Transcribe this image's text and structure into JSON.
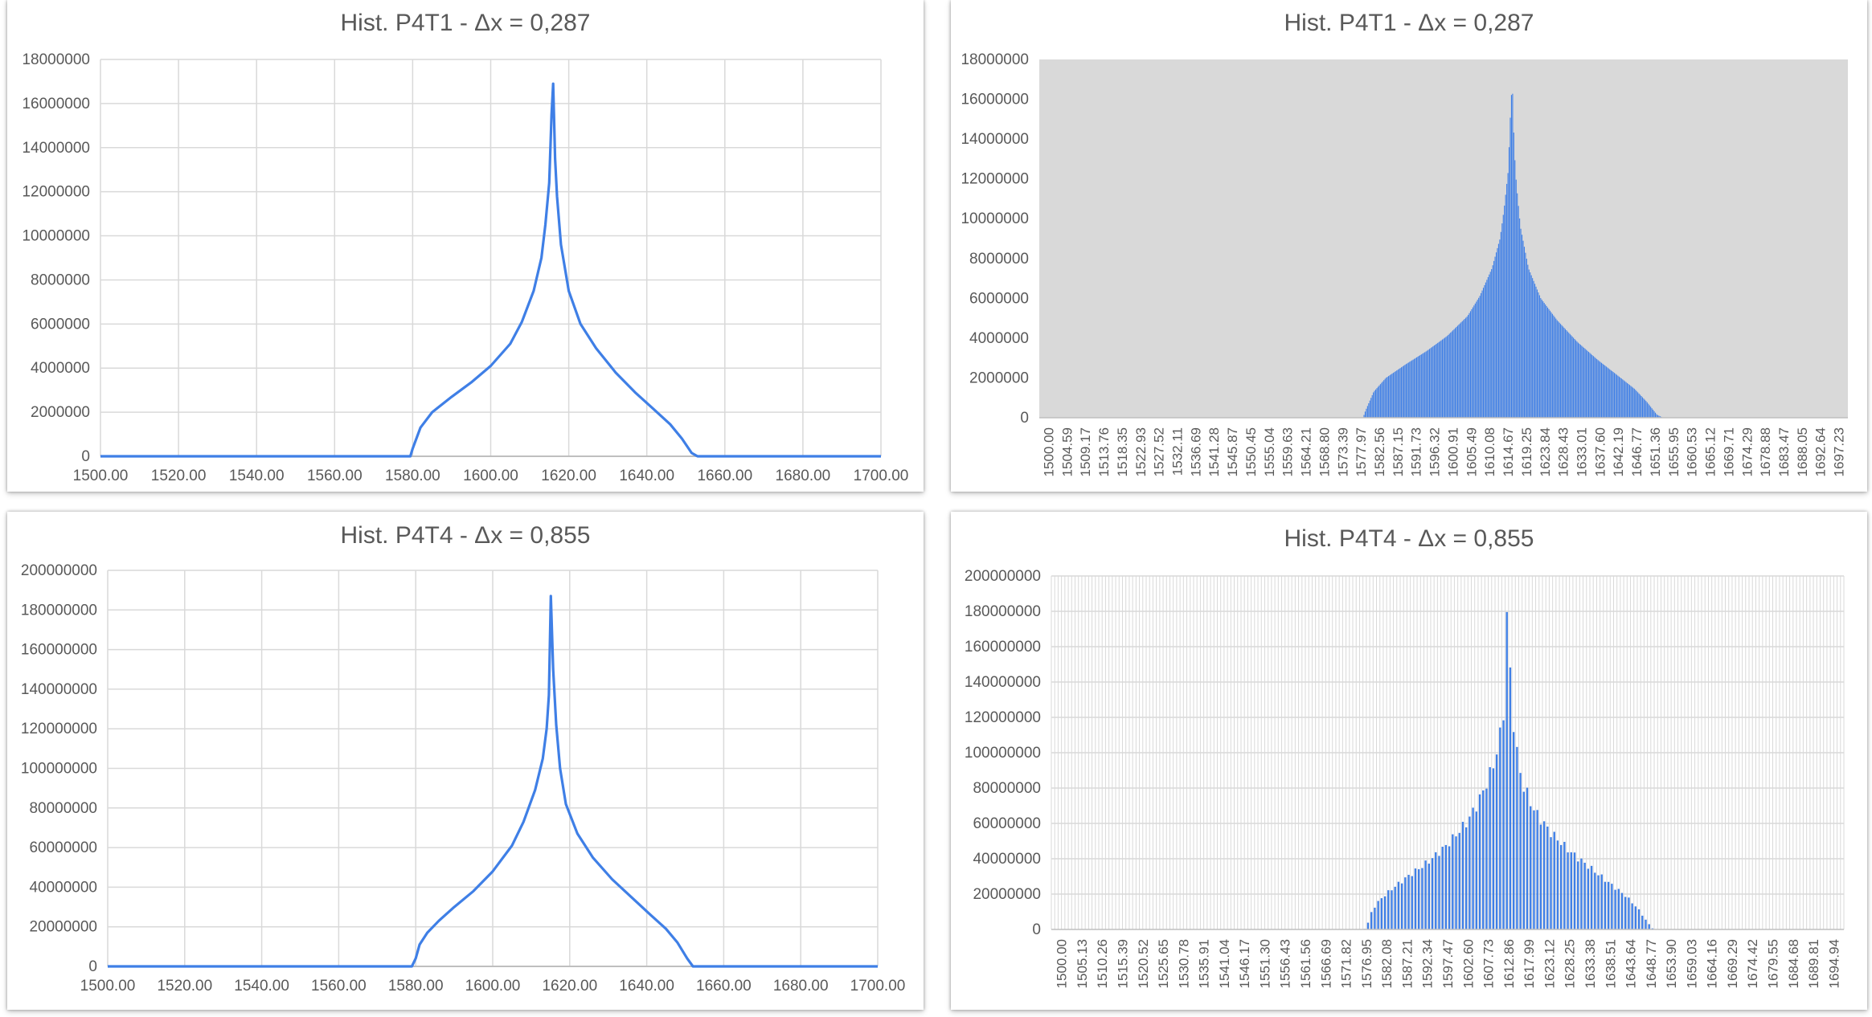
{
  "colors": {
    "series": "#3f7fe6",
    "grid": "#d9d9d9",
    "axis": "#bfbfbf",
    "text": "#595959",
    "plot_gray": "#d9d9d9"
  },
  "chart_data": [
    {
      "type": "line",
      "title": "Hist. P4T1 - Δx = 0,287",
      "xlim": [
        1500,
        1700
      ],
      "ylim": [
        0,
        18000000
      ],
      "x_ticks": [
        "1500.00",
        "1520.00",
        "1540.00",
        "1560.00",
        "1580.00",
        "1600.00",
        "1620.00",
        "1640.00",
        "1660.00",
        "1680.00",
        "1700.00"
      ],
      "y_ticks": [
        "0",
        "2000000",
        "4000000",
        "6000000",
        "8000000",
        "10000000",
        "12000000",
        "14000000",
        "16000000",
        "18000000"
      ],
      "series": [
        {
          "x": [
            1500,
            1579.4,
            1580,
            1582,
            1585,
            1590,
            1595,
            1600,
            1605,
            1608,
            1611,
            1613,
            1614,
            1615,
            1615.6,
            1616,
            1616.5,
            1617,
            1618,
            1620,
            1623,
            1627,
            1632,
            1637,
            1642,
            1646,
            1649,
            1651.5,
            1653,
            1700
          ],
          "y": [
            0,
            0,
            350000,
            1300000,
            2000000,
            2700000,
            3350000,
            4100000,
            5100000,
            6100000,
            7500000,
            9000000,
            10500000,
            12400000,
            15500000,
            16900000,
            13500000,
            11800000,
            9600000,
            7500000,
            6000000,
            4900000,
            3800000,
            2900000,
            2100000,
            1450000,
            800000,
            150000,
            0,
            0
          ]
        }
      ],
      "grid": true
    },
    {
      "type": "bar",
      "title": "Hist. P4T1 - Δx = 0,287",
      "bin_width": 0.287,
      "x_start": 1500.0,
      "x_end": 1698.03,
      "ylim": [
        0,
        18000000
      ],
      "x_tick_labels": [
        "1500.00",
        "1504.59",
        "1509.17",
        "1513.76",
        "1518.35",
        "1522.93",
        "1527.52",
        "1532.11",
        "1536.69",
        "1541.28",
        "1545.87",
        "1550.45",
        "1555.04",
        "1559.63",
        "1564.21",
        "1568.80",
        "1573.39",
        "1577.97",
        "1582.56",
        "1587.15",
        "1591.73",
        "1596.32",
        "1600.91",
        "1605.49",
        "1610.08",
        "1614.67",
        "1619.25",
        "1623.84",
        "1628.43",
        "1633.01",
        "1637.60",
        "1642.19",
        "1646.77",
        "1651.36",
        "1655.95",
        "1660.53",
        "1665.12",
        "1669.71",
        "1674.29",
        "1678.88",
        "1683.47",
        "1688.05",
        "1692.64",
        "1697.23"
      ],
      "y_ticks": [
        "0",
        "2000000",
        "4000000",
        "6000000",
        "8000000",
        "10000000",
        "12000000",
        "14000000",
        "16000000",
        "18000000"
      ],
      "envelope": {
        "x": [
          1500,
          1579.4,
          1580,
          1582,
          1585,
          1590,
          1595,
          1600,
          1605,
          1608,
          1611,
          1613,
          1614,
          1615,
          1615.6,
          1616,
          1616.5,
          1617,
          1618,
          1620,
          1623,
          1627,
          1632,
          1637,
          1642,
          1646,
          1649,
          1651.5,
          1653,
          1700
        ],
        "y": [
          0,
          0,
          350000,
          1300000,
          2000000,
          2700000,
          3350000,
          4100000,
          5100000,
          6100000,
          7500000,
          9000000,
          10500000,
          12400000,
          15500000,
          16900000,
          13500000,
          11800000,
          9600000,
          7500000,
          6000000,
          4900000,
          3800000,
          2900000,
          2100000,
          1450000,
          800000,
          150000,
          0,
          0
        ]
      },
      "plot_background": "#d9d9d9",
      "grid": false
    },
    {
      "type": "line",
      "title": "Hist. P4T4 - Δx = 0,855",
      "xlim": [
        1500,
        1700
      ],
      "ylim": [
        0,
        200000000
      ],
      "x_ticks": [
        "1500.00",
        "1520.00",
        "1540.00",
        "1560.00",
        "1580.00",
        "1600.00",
        "1620.00",
        "1640.00",
        "1660.00",
        "1680.00",
        "1700.00"
      ],
      "y_ticks": [
        "0",
        "20000000",
        "40000000",
        "60000000",
        "80000000",
        "100000000",
        "120000000",
        "140000000",
        "160000000",
        "180000000",
        "200000000"
      ],
      "series": [
        {
          "x": [
            1500,
            1579,
            1580,
            1581,
            1583,
            1586,
            1590,
            1595,
            1600,
            1605,
            1608,
            1611,
            1613,
            1614,
            1614.6,
            1615.1,
            1615.7,
            1616.5,
            1617.5,
            1619,
            1622,
            1626,
            1631,
            1636,
            1641,
            1645,
            1648,
            1650.5,
            1652,
            1700
          ],
          "y": [
            0,
            0,
            4000000,
            11000000,
            17000000,
            23000000,
            30000000,
            38000000,
            48000000,
            61000000,
            73000000,
            89000000,
            105000000,
            120000000,
            137000000,
            187000000,
            150000000,
            122000000,
            100000000,
            82000000,
            67000000,
            55000000,
            44000000,
            35000000,
            26000000,
            19000000,
            12000000,
            4000000,
            0,
            0
          ]
        }
      ],
      "grid": true
    },
    {
      "type": "bar",
      "title": "Hist. P4T4 - Δx = 0,855",
      "bin_width": 0.855,
      "x_start": 1500.0,
      "x_end": 1699.22,
      "ylim": [
        0,
        200000000
      ],
      "x_tick_labels": [
        "1500.00",
        "1505.13",
        "1510.26",
        "1515.39",
        "1520.52",
        "1525.65",
        "1530.78",
        "1535.91",
        "1541.04",
        "1546.17",
        "1551.30",
        "1556.43",
        "1561.56",
        "1566.69",
        "1571.82",
        "1576.95",
        "1582.08",
        "1587.21",
        "1592.34",
        "1597.47",
        "1602.60",
        "1607.73",
        "1612.86",
        "1617.99",
        "1623.12",
        "1628.25",
        "1633.38",
        "1638.51",
        "1643.64",
        "1648.77",
        "1653.90",
        "1659.03",
        "1664.16",
        "1669.29",
        "1674.42",
        "1679.55",
        "1684.68",
        "1689.81",
        "1694.94"
      ],
      "y_ticks": [
        "0",
        "20000000",
        "40000000",
        "60000000",
        "80000000",
        "100000000",
        "120000000",
        "140000000",
        "160000000",
        "180000000",
        "200000000"
      ],
      "envelope": {
        "x": [
          1500,
          1579,
          1580,
          1581,
          1583,
          1586,
          1590,
          1595,
          1600,
          1605,
          1608,
          1611,
          1613,
          1614,
          1614.6,
          1615.1,
          1615.7,
          1616.5,
          1617.5,
          1619,
          1622,
          1626,
          1631,
          1636,
          1641,
          1645,
          1648,
          1650.5,
          1652,
          1700
        ],
        "y": [
          0,
          0,
          4000000,
          11000000,
          17000000,
          23000000,
          30000000,
          38000000,
          48000000,
          61000000,
          73000000,
          89000000,
          105000000,
          120000000,
          137000000,
          187000000,
          150000000,
          122000000,
          100000000,
          82000000,
          67000000,
          55000000,
          44000000,
          35000000,
          26000000,
          19000000,
          12000000,
          4000000,
          0,
          0
        ]
      },
      "plot_background": "#ffffff",
      "grid": true
    }
  ]
}
